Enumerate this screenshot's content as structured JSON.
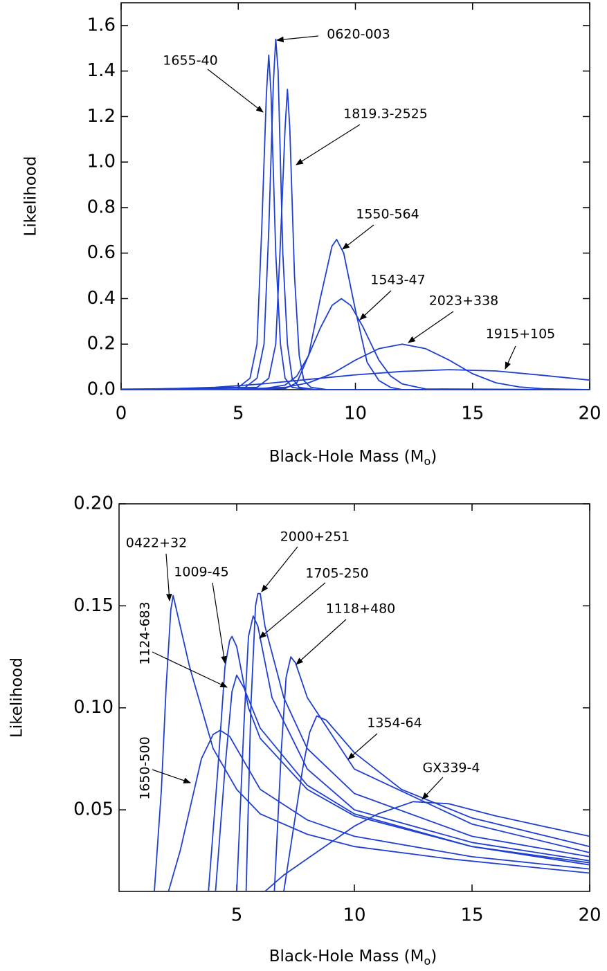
{
  "chart_data": [
    {
      "type": "line",
      "color": "#1f3fd0",
      "x_label": {
        "main": "Black-Hole Mass (M",
        "sub": "o",
        "end": ")"
      },
      "y_label": "Likelihood",
      "xlim": [
        0,
        20
      ],
      "ylim": [
        0,
        1.7
      ],
      "xticks": [
        0,
        5,
        10,
        15,
        20
      ],
      "yticks": [
        {
          "value": 0,
          "label": "0.0"
        },
        0.2,
        0.4,
        0.6,
        0.8,
        {
          "value": 1,
          "label": "1.0"
        },
        1.2,
        1.4,
        1.6
      ],
      "series": [
        {
          "name": "1655-40",
          "x": [
            0,
            5,
            5.5,
            5.8,
            6.0,
            6.2,
            6.3,
            6.4,
            6.6,
            6.8,
            7.0,
            7.3,
            8,
            20
          ],
          "values": [
            0,
            0.01,
            0.05,
            0.2,
            0.7,
            1.3,
            1.47,
            1.3,
            0.6,
            0.2,
            0.05,
            0.01,
            0,
            0
          ]
        },
        {
          "name": "0620-003",
          "x": [
            0,
            5.3,
            5.8,
            6.1,
            6.3,
            6.5,
            6.6,
            6.7,
            6.9,
            7.1,
            7.3,
            7.6,
            8.3,
            20
          ],
          "values": [
            0,
            0.01,
            0.05,
            0.2,
            0.7,
            1.35,
            1.54,
            1.4,
            0.6,
            0.2,
            0.05,
            0.01,
            0,
            0
          ]
        },
        {
          "name": "1819.3-2525",
          "x": [
            0,
            5.8,
            6.3,
            6.6,
            6.8,
            7.0,
            7.1,
            7.2,
            7.4,
            7.6,
            7.8,
            8.1,
            8.8,
            20
          ],
          "values": [
            0,
            0.01,
            0.05,
            0.2,
            0.65,
            1.15,
            1.32,
            1.15,
            0.5,
            0.15,
            0.04,
            0.01,
            0,
            0
          ]
        },
        {
          "name": "1550-564",
          "x": [
            0,
            6,
            7,
            7.5,
            8,
            8.5,
            9,
            9.2,
            9.5,
            10,
            10.5,
            11,
            11.5,
            12,
            20
          ],
          "values": [
            0,
            0.002,
            0.005,
            0.03,
            0.15,
            0.4,
            0.63,
            0.66,
            0.6,
            0.35,
            0.12,
            0.04,
            0.01,
            0,
            0
          ]
        },
        {
          "name": "1543-47",
          "x": [
            0,
            6,
            7,
            7.5,
            8,
            8.5,
            9,
            9.4,
            9.8,
            10.3,
            11,
            11.5,
            12,
            13,
            20
          ],
          "values": [
            0,
            0.003,
            0.02,
            0.06,
            0.15,
            0.27,
            0.37,
            0.4,
            0.37,
            0.28,
            0.13,
            0.06,
            0.025,
            0.003,
            0
          ]
        },
        {
          "name": "2023+338",
          "x": [
            0,
            5,
            7,
            8,
            9,
            10,
            11,
            12,
            13,
            14,
            15,
            16,
            17,
            18,
            20
          ],
          "values": [
            0,
            0.002,
            0.01,
            0.03,
            0.07,
            0.13,
            0.18,
            0.2,
            0.18,
            0.13,
            0.07,
            0.03,
            0.012,
            0.004,
            0
          ]
        },
        {
          "name": "1915+105",
          "x": [
            0,
            2,
            4,
            6,
            8,
            10,
            12,
            14,
            16,
            18,
            20
          ],
          "values": [
            0.002,
            0.004,
            0.01,
            0.025,
            0.045,
            0.065,
            0.08,
            0.088,
            0.082,
            0.063,
            0.042
          ]
        }
      ]
    },
    {
      "type": "line",
      "color": "#1f3fd0",
      "x_label": {
        "main": "Black-Hole Mass (M",
        "sub": "o",
        "end": ")"
      },
      "y_label": "Likelihood",
      "xlim": [
        0,
        20
      ],
      "ylim": [
        0.01,
        0.2
      ],
      "xticks": [
        5,
        10,
        15,
        20
      ],
      "yticks": [
        0.05,
        {
          "value": 0.1,
          "label": "0.10"
        },
        0.15,
        {
          "value": 0.2,
          "label": "0.20"
        }
      ],
      "series": [
        {
          "name": "0422+32",
          "x": [
            1.5,
            1.8,
            2.0,
            2.2,
            2.3,
            2.5,
            3,
            4,
            5,
            6,
            8,
            10,
            14,
            20
          ],
          "values": [
            0.01,
            0.06,
            0.11,
            0.148,
            0.155,
            0.145,
            0.12,
            0.08,
            0.06,
            0.048,
            0.038,
            0.032,
            0.026,
            0.019
          ]
        },
        {
          "name": "1650-500",
          "x": [
            2.1,
            2.6,
            3,
            3.5,
            4,
            4.3,
            4.7,
            5,
            6,
            8,
            10,
            15,
            20
          ],
          "values": [
            0.01,
            0.03,
            0.05,
            0.075,
            0.087,
            0.089,
            0.086,
            0.08,
            0.06,
            0.045,
            0.037,
            0.027,
            0.021
          ]
        },
        {
          "name": "1009-45",
          "x": [
            3.8,
            4.2,
            4.5,
            4.7,
            4.8,
            5.0,
            5.5,
            6,
            8,
            10,
            15,
            20
          ],
          "values": [
            0.01,
            0.07,
            0.12,
            0.133,
            0.135,
            0.13,
            0.1,
            0.085,
            0.06,
            0.047,
            0.032,
            0.024
          ]
        },
        {
          "name": "1124-683",
          "x": [
            4.1,
            4.5,
            4.8,
            5.0,
            5.3,
            6,
            8,
            10,
            15,
            20
          ],
          "values": [
            0.01,
            0.07,
            0.108,
            0.116,
            0.11,
            0.09,
            0.062,
            0.048,
            0.032,
            0.023
          ]
        },
        {
          "name": "1705-250",
          "x": [
            5.0,
            5.3,
            5.5,
            5.7,
            5.9,
            6.5,
            8,
            10,
            15,
            20
          ],
          "values": [
            0.01,
            0.09,
            0.135,
            0.145,
            0.14,
            0.105,
            0.07,
            0.05,
            0.034,
            0.025
          ]
        },
        {
          "name": "2000+251",
          "x": [
            5.4,
            5.6,
            5.8,
            5.9,
            6.0,
            6.2,
            7,
            8,
            10,
            15,
            20
          ],
          "values": [
            0.01,
            0.1,
            0.15,
            0.156,
            0.156,
            0.14,
            0.105,
            0.08,
            0.058,
            0.037,
            0.027
          ]
        },
        {
          "name": "1118+480",
          "x": [
            6.6,
            6.9,
            7.1,
            7.3,
            7.5,
            8,
            10,
            15,
            20
          ],
          "values": [
            0.01,
            0.08,
            0.115,
            0.125,
            0.122,
            0.105,
            0.07,
            0.043,
            0.029
          ]
        },
        {
          "name": "1354-64",
          "x": [
            7.0,
            7.4,
            7.8,
            8.1,
            8.4,
            8.8,
            10,
            12,
            15,
            20
          ],
          "values": [
            0.01,
            0.04,
            0.07,
            0.088,
            0.096,
            0.094,
            0.078,
            0.06,
            0.046,
            0.032
          ]
        },
        {
          "name": "GX339-4",
          "x": [
            6.2,
            7,
            8,
            9,
            10,
            11,
            12.5,
            14,
            16,
            18,
            20
          ],
          "values": [
            0.01,
            0.018,
            0.026,
            0.034,
            0.042,
            0.048,
            0.054,
            0.053,
            0.047,
            0.042,
            0.037
          ]
        }
      ]
    }
  ]
}
